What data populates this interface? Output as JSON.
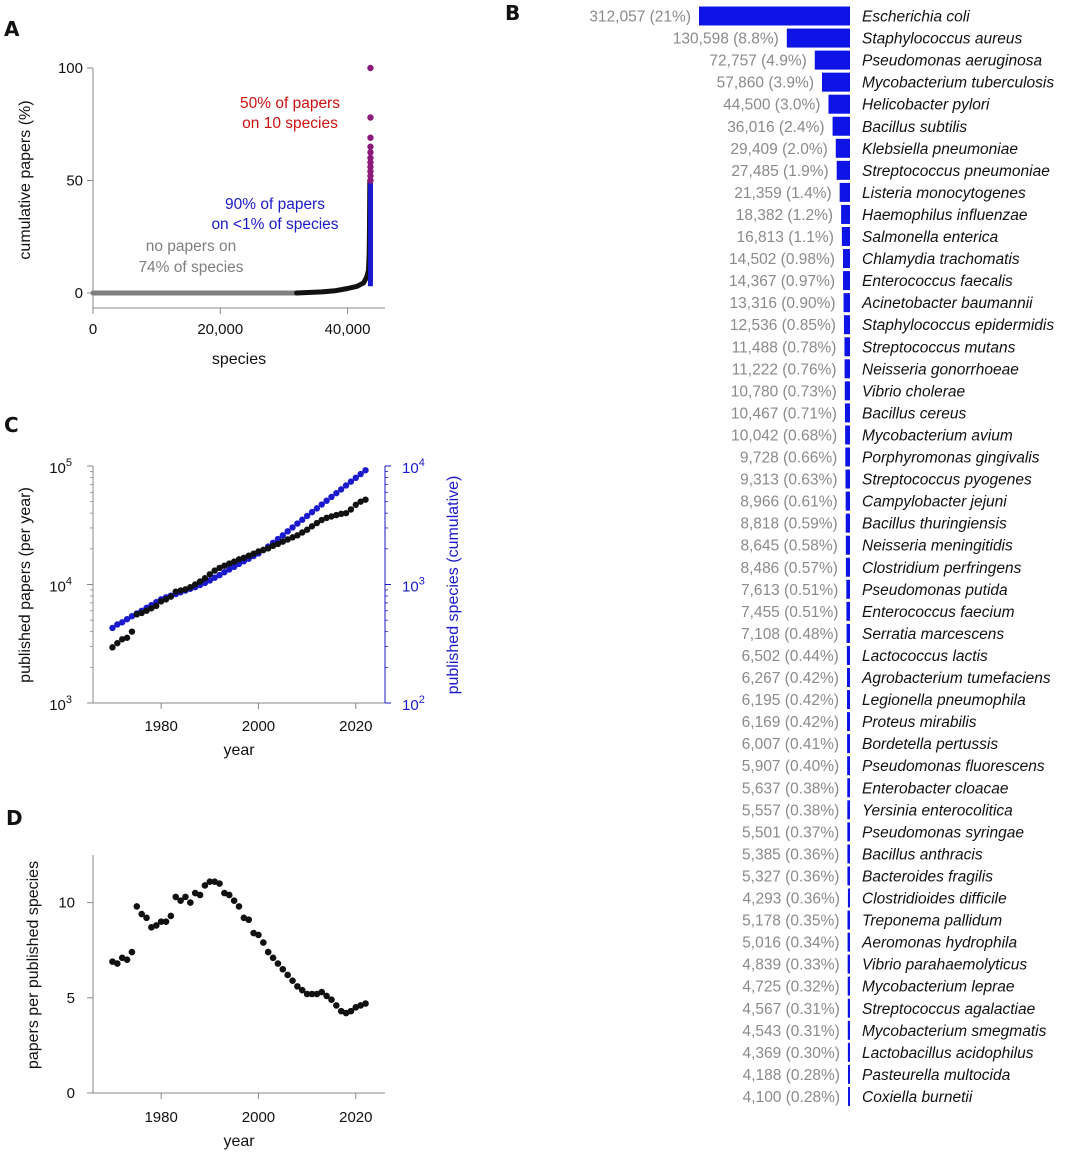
{
  "labels": {
    "A": "A",
    "B": "B",
    "C": "C",
    "D": "D"
  },
  "colors": {
    "blue": "#1a1acc",
    "bar": "#0f14e6",
    "red": "#cc1111",
    "purple": "#8b1a7a",
    "gray": "#7f7f7f",
    "black": "#111111"
  },
  "chart_data": [
    {
      "panel": "A",
      "type": "scatter",
      "xlabel": "species",
      "ylabel": "cumulative papers (%)",
      "xlim": [
        0,
        44000
      ],
      "ylim": [
        0,
        100
      ],
      "xticks": [
        0,
        20000,
        40000
      ],
      "xtick_labels": [
        "0",
        "20,000",
        "40,000"
      ],
      "yticks": [
        0,
        50,
        100
      ],
      "ytick_labels": [
        "0",
        "50",
        "100"
      ],
      "annotations": {
        "red": [
          "50% of papers",
          "on 10 species"
        ],
        "blue": [
          "90% of papers",
          "on <1% of species"
        ],
        "gray": [
          "no papers on",
          "74% of species"
        ]
      },
      "segments": {
        "zero_end": 32000,
        "black_end": 43350,
        "total": 43600
      },
      "curve": [
        [
          32000,
          0
        ],
        [
          36000,
          0.5
        ],
        [
          38000,
          1
        ],
        [
          40000,
          2
        ],
        [
          41500,
          3
        ],
        [
          42500,
          4.5
        ],
        [
          43000,
          7
        ],
        [
          43300,
          10
        ],
        [
          43400,
          18
        ],
        [
          43450,
          30
        ],
        [
          43500,
          50
        ]
      ],
      "top_points": [
        50,
        52,
        54,
        56,
        58,
        60,
        62.5,
        65,
        69,
        78,
        100
      ]
    },
    {
      "panel": "B",
      "type": "bar",
      "orientation": "horizontal",
      "xmax": 312057,
      "categories": [
        "Escherichia coli",
        "Staphylococcus aureus",
        "Pseudomonas aeruginosa",
        "Mycobacterium tuberculosis",
        "Helicobacter pylori",
        "Bacillus subtilis",
        "Klebsiella pneumoniae",
        "Streptococcus pneumoniae",
        "Listeria monocytogenes",
        "Haemophilus influenzae",
        "Salmonella enterica",
        "Chlamydia trachomatis",
        "Enterococcus faecalis",
        "Acinetobacter baumannii",
        "Staphylococcus epidermidis",
        "Streptococcus mutans",
        "Neisseria gonorrhoeae",
        "Vibrio cholerae",
        "Bacillus cereus",
        "Mycobacterium avium",
        "Porphyromonas gingivalis",
        "Streptococcus pyogenes",
        "Campylobacter jejuni",
        "Bacillus thuringiensis",
        "Neisseria meningitidis",
        "Clostridium perfringens",
        "Pseudomonas putida",
        "Enterococcus faecium",
        "Serratia marcescens",
        "Lactococcus lactis",
        "Agrobacterium tumefaciens",
        "Legionella pneumophila",
        "Proteus mirabilis",
        "Bordetella pertussis",
        "Pseudomonas fluorescens",
        "Enterobacter cloacae",
        "Yersinia enterocolitica",
        "Pseudomonas syringae",
        "Bacillus anthracis",
        "Bacteroides fragilis",
        "Clostridioides difficile",
        "Treponema pallidum",
        "Aeromonas hydrophila",
        "Vibrio parahaemolyticus",
        "Mycobacterium leprae",
        "Streptococcus agalactiae",
        "Mycobacterium smegmatis",
        "Lactobacillus acidophilus",
        "Pasteurella multocida",
        "Coxiella burnetii"
      ],
      "values": [
        312057,
        130598,
        72757,
        57860,
        44500,
        36016,
        29409,
        27485,
        21359,
        18382,
        16813,
        14502,
        14367,
        13316,
        12536,
        11488,
        11222,
        10780,
        10467,
        10042,
        9728,
        9313,
        8966,
        8818,
        8645,
        8486,
        7613,
        7455,
        7108,
        6502,
        6267,
        6195,
        6169,
        6007,
        5907,
        5637,
        5557,
        5501,
        5385,
        5327,
        4293,
        5178,
        5016,
        4839,
        4725,
        4567,
        4543,
        4369,
        4188,
        4100
      ],
      "value_labels": [
        "312,057 (21%)",
        "130,598 (8.8%)",
        "72,757 (4.9%)",
        "57,860 (3.9%)",
        "44,500 (3.0%)",
        "36,016 (2.4%)",
        "29,409 (2.0%)",
        "27,485 (1.9%)",
        "21,359 (1.4%)",
        "18,382 (1.2%)",
        "16,813 (1.1%)",
        "14,502 (0.98%)",
        "14,367 (0.97%)",
        "13,316 (0.90%)",
        "12,536 (0.85%)",
        "11,488 (0.78%)",
        "11,222 (0.76%)",
        "10,780 (0.73%)",
        "10,467 (0.71%)",
        "10,042 (0.68%)",
        "9,728 (0.66%)",
        "9,313 (0.63%)",
        "8,966 (0.61%)",
        "8,818 (0.59%)",
        "8,645 (0.58%)",
        "8,486 (0.57%)",
        "7,613 (0.51%)",
        "7,455 (0.51%)",
        "7,108 (0.48%)",
        "6,502 (0.44%)",
        "6,267 (0.42%)",
        "6,195 (0.42%)",
        "6,169 (0.42%)",
        "6,007 (0.41%)",
        "5,907 (0.40%)",
        "5,637 (0.38%)",
        "5,557 (0.38%)",
        "5,501 (0.37%)",
        "5,385 (0.36%)",
        "5,327 (0.36%)",
        "4,293 (0.36%)",
        "5,178 (0.35%)",
        "5,016 (0.34%)",
        "4,839 (0.33%)",
        "4,725 (0.32%)",
        "4,567 (0.31%)",
        "4,543 (0.31%)",
        "4,369 (0.30%)",
        "4,188 (0.28%)",
        "4,100 (0.28%)"
      ]
    },
    {
      "panel": "C",
      "type": "scatter",
      "scale": "log",
      "xlabel": "year",
      "ylabel_left": "published papers (per year)",
      "ylabel_right": "published species (cumulative)",
      "xlim": [
        1966,
        2026
      ],
      "ylim_left": [
        1000,
        100000
      ],
      "ylim_right": [
        100,
        10000
      ],
      "xticks": [
        1980,
        2000,
        2020
      ],
      "xtick_labels": [
        "1980",
        "2000",
        "2020"
      ],
      "ytick_left": {
        "values": [
          1000,
          10000,
          100000
        ],
        "base": "10",
        "exp": [
          "3",
          "4",
          "5"
        ]
      },
      "ytick_right": {
        "values": [
          100,
          1000,
          10000
        ],
        "base": "10",
        "exp": [
          "2",
          "3",
          "4"
        ]
      },
      "series": [
        {
          "name": "published papers (per year)",
          "axis": "left",
          "color": "#111111",
          "x": [
            1970,
            1971,
            1972,
            1973,
            1974,
            1975,
            1976,
            1977,
            1978,
            1979,
            1980,
            1981,
            1982,
            1983,
            1984,
            1985,
            1986,
            1987,
            1988,
            1989,
            1990,
            1991,
            1992,
            1993,
            1994,
            1995,
            1996,
            1997,
            1998,
            1999,
            2000,
            2001,
            2002,
            2003,
            2004,
            2005,
            2006,
            2007,
            2008,
            2009,
            2010,
            2011,
            2012,
            2013,
            2014,
            2015,
            2016,
            2017,
            2018,
            2019,
            2020,
            2021,
            2022
          ],
          "y": [
            2950,
            3200,
            3450,
            3550,
            4000,
            5600,
            5750,
            6000,
            6300,
            6600,
            7200,
            7500,
            7900,
            8700,
            8900,
            9100,
            9500,
            10000,
            10600,
            11300,
            12200,
            13100,
            13800,
            14400,
            15000,
            15600,
            16300,
            16800,
            17500,
            18200,
            19000,
            19600,
            20200,
            21200,
            22000,
            23000,
            24000,
            25000,
            26000,
            27500,
            29000,
            31000,
            33000,
            35000,
            36500,
            37500,
            38500,
            39500,
            40000,
            43000,
            47000,
            50000,
            52000
          ]
        },
        {
          "name": "published species (cumulative)",
          "axis": "right",
          "color": "#1a1acc",
          "x": [
            1970,
            1971,
            1972,
            1973,
            1974,
            1975,
            1976,
            1977,
            1978,
            1979,
            1980,
            1981,
            1982,
            1983,
            1984,
            1985,
            1986,
            1987,
            1988,
            1989,
            1990,
            1991,
            1992,
            1993,
            1994,
            1995,
            1996,
            1997,
            1998,
            1999,
            2000,
            2001,
            2002,
            2003,
            2004,
            2005,
            2006,
            2007,
            2008,
            2009,
            2010,
            2011,
            2012,
            2013,
            2014,
            2015,
            2016,
            2017,
            2018,
            2019,
            2020,
            2021,
            2022
          ],
          "y": [
            430,
            460,
            480,
            510,
            540,
            570,
            600,
            635,
            670,
            710,
            750,
            780,
            805,
            830,
            860,
            890,
            920,
            950,
            990,
            1030,
            1080,
            1140,
            1200,
            1270,
            1340,
            1410,
            1490,
            1570,
            1650,
            1740,
            1830,
            1950,
            2090,
            2250,
            2420,
            2600,
            2810,
            3030,
            3270,
            3520,
            3790,
            4080,
            4390,
            4730,
            5090,
            5480,
            5900,
            6350,
            6850,
            7380,
            7950,
            8550,
            9200
          ]
        }
      ]
    },
    {
      "panel": "D",
      "type": "scatter",
      "xlabel": "year",
      "ylabel": "papers per published species",
      "xlim": [
        1966,
        2026
      ],
      "ylim": [
        0,
        12.5
      ],
      "xticks": [
        1980,
        2000,
        2020
      ],
      "xtick_labels": [
        "1980",
        "2000",
        "2020"
      ],
      "yticks": [
        0,
        5,
        10
      ],
      "ytick_labels": [
        "0",
        "5",
        "10"
      ],
      "x": [
        1970,
        1971,
        1972,
        1973,
        1974,
        1975,
        1976,
        1977,
        1978,
        1979,
        1980,
        1981,
        1982,
        1983,
        1984,
        1985,
        1986,
        1987,
        1988,
        1989,
        1990,
        1991,
        1992,
        1993,
        1994,
        1995,
        1996,
        1997,
        1998,
        1999,
        2000,
        2001,
        2002,
        2003,
        2004,
        2005,
        2006,
        2007,
        2008,
        2009,
        2010,
        2011,
        2012,
        2013,
        2014,
        2015,
        2016,
        2017,
        2018,
        2019,
        2020,
        2021,
        2022
      ],
      "y": [
        6.9,
        6.8,
        7.1,
        7.0,
        7.4,
        9.8,
        9.4,
        9.2,
        8.7,
        8.8,
        9.0,
        9.0,
        9.3,
        10.3,
        10.1,
        10.3,
        10.0,
        10.5,
        10.4,
        10.9,
        11.1,
        11.1,
        11.0,
        10.5,
        10.4,
        10.1,
        9.8,
        9.2,
        9.1,
        8.4,
        8.3,
        7.9,
        7.4,
        7.1,
        6.8,
        6.5,
        6.2,
        5.9,
        5.6,
        5.4,
        5.2,
        5.2,
        5.2,
        5.3,
        5.1,
        4.9,
        4.6,
        4.3,
        4.2,
        4.3,
        4.5,
        4.6,
        4.7
      ]
    }
  ]
}
